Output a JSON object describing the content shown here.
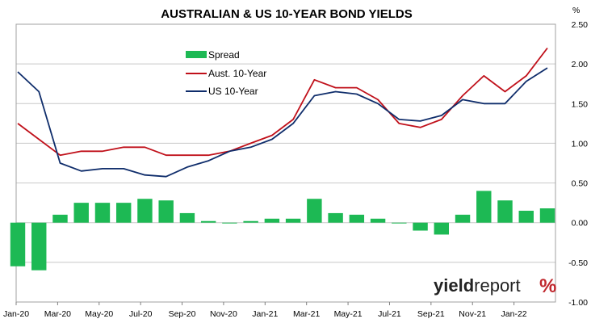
{
  "chart_data": {
    "type": "line",
    "title": "AUSTRALIAN & US 10-YEAR BOND YIELDS",
    "y_unit": "%",
    "ylim": [
      -1.0,
      2.5
    ],
    "y_ticks": [
      "2.50",
      "2.00",
      "1.50",
      "1.00",
      "0.50",
      "0.00",
      "-0.50",
      "-1.00"
    ],
    "y_tick_values": [
      2.5,
      2.0,
      1.5,
      1.0,
      0.5,
      0.0,
      -0.5,
      -1.0
    ],
    "x_ticks": [
      "Jan-20",
      "Mar-20",
      "May-20",
      "Jul-20",
      "Sep-20",
      "Nov-20",
      "Jan-21",
      "Mar-21",
      "May-21",
      "Jul-21",
      "Sep-21",
      "Nov-21",
      "Jan-22"
    ],
    "x": [
      "2020-01",
      "2020-02",
      "2020-03",
      "2020-04",
      "2020-05",
      "2020-06",
      "2020-07",
      "2020-08",
      "2020-09",
      "2020-10",
      "2020-11",
      "2020-12",
      "2021-01",
      "2021-02",
      "2021-03",
      "2021-04",
      "2021-05",
      "2021-06",
      "2021-07",
      "2021-08",
      "2021-09",
      "2021-10",
      "2021-11",
      "2021-12",
      "2022-01",
      "2022-02"
    ],
    "grid": true,
    "legend_position": "top-left",
    "series": [
      {
        "name": "Spread",
        "type": "bar",
        "color": "#1db954",
        "values": [
          -0.55,
          -0.6,
          0.1,
          0.25,
          0.25,
          0.25,
          0.3,
          0.28,
          0.12,
          0.02,
          0.0,
          0.02,
          0.05,
          0.05,
          0.3,
          0.12,
          0.1,
          0.05,
          0.0,
          -0.1,
          -0.15,
          0.1,
          0.4,
          0.28,
          0.15,
          0.18
        ]
      },
      {
        "name": "Aust. 10-Year",
        "type": "line",
        "color": "#c0101a",
        "values": [
          1.25,
          1.05,
          0.85,
          0.9,
          0.9,
          0.95,
          0.95,
          0.85,
          0.85,
          0.85,
          0.9,
          1.0,
          1.1,
          1.3,
          1.8,
          1.7,
          1.7,
          1.55,
          1.25,
          1.2,
          1.3,
          1.6,
          1.85,
          1.65,
          1.85,
          2.2
        ]
      },
      {
        "name": "US 10-Year",
        "type": "line",
        "color": "#0f2d6b",
        "values": [
          1.9,
          1.65,
          0.75,
          0.65,
          0.68,
          0.68,
          0.6,
          0.58,
          0.7,
          0.78,
          0.9,
          0.95,
          1.05,
          1.25,
          1.6,
          1.65,
          1.62,
          1.5,
          1.3,
          1.28,
          1.35,
          1.55,
          1.5,
          1.5,
          1.78,
          1.95
        ]
      }
    ]
  },
  "logo": {
    "part1": "yield",
    "part2": "report",
    "mark": "%"
  }
}
